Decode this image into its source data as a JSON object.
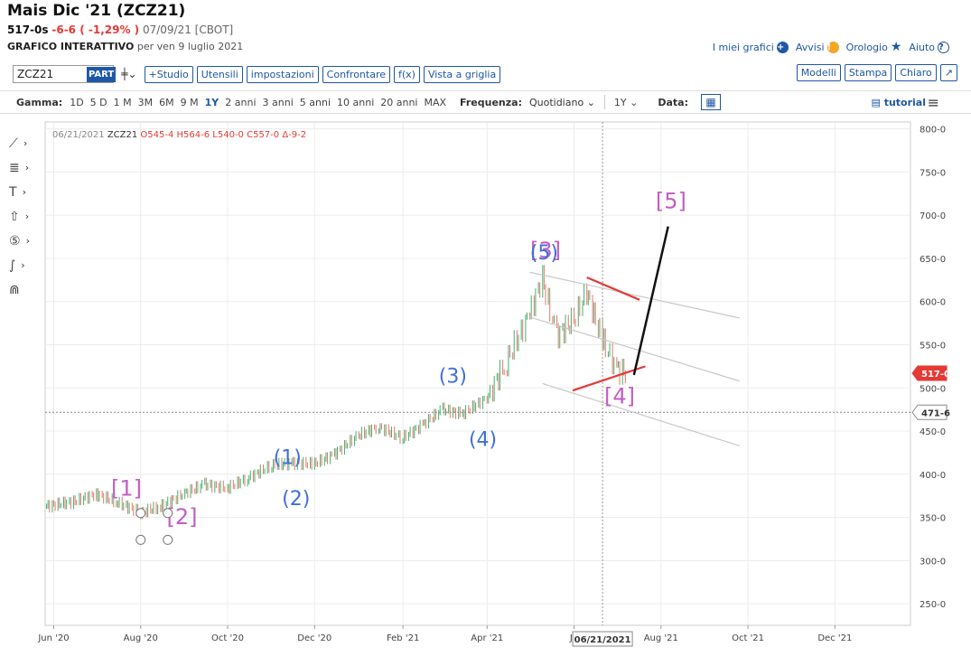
{
  "header": {
    "title": "Mais Dic '21 (ZCZ21)",
    "price": "517-0s",
    "change": "-6-6 ( -1,29% )",
    "date_exchange": "07/09/21 [CBOT]",
    "subtitle_bold": "GRAFICO INTERATTIVO",
    "subtitle_rest": "per ven 9 luglio 2021"
  },
  "toplinks": {
    "my_charts": "I miei grafici",
    "alerts": "Avvisi",
    "watch": "Orologio",
    "help": "Aiuto"
  },
  "toolbar": {
    "symbol_value": "ZCZ21",
    "part_label": "PART",
    "buttons": [
      "+Studio",
      "Utensili",
      "impostazioni",
      "Confrontare",
      "f(x)",
      "Vista a griglia"
    ],
    "right_buttons": [
      "Modelli",
      "Stampa",
      "Chiaro",
      "↗"
    ]
  },
  "rangebar": {
    "range_label": "Gamma:",
    "ranges": [
      "1D",
      "5 D",
      "1 M",
      "3M",
      "6M",
      "9 M",
      "1Y",
      "2 anni",
      "3 anni",
      "5 anni",
      "10 anni",
      "20 anni",
      "MAX"
    ],
    "active_range": "1Y",
    "freq_label": "Frequenza:",
    "freq_value": "Quotidiano",
    "period_value": "1Y",
    "date_label": "Data:",
    "tutorial": "tutorial"
  },
  "sidetools": [
    "line-tool",
    "fib-tool",
    "text-tool",
    "arrow-tool",
    "count-tool",
    "path-tool",
    "magnet-tool"
  ],
  "chart_data": {
    "type": "ohlc",
    "legend": {
      "date": "06/21/2021",
      "symbol": "ZCZ21",
      "open": "O545-4",
      "high": "H564-6",
      "low": "L540-0",
      "close": "C557-0",
      "change": "Δ-9-2"
    },
    "y_ticks": [
      "800-0",
      "750-0",
      "700-0",
      "650-0",
      "600-0",
      "550-0",
      "500-0",
      "450-0",
      "400-0",
      "350-0",
      "300-0",
      "250-0"
    ],
    "ylim": [
      225,
      808
    ],
    "x_ticks": [
      "Jun '20",
      "Aug '20",
      "Oct '20",
      "Dec '20",
      "Feb '21",
      "Apr '21",
      "Ju",
      "Aug '21",
      "Oct '21",
      "Dec '21"
    ],
    "cursor_date_label": "06/21/2021",
    "last_price_label": "517-0",
    "crosshair_price_label": "471-6",
    "series": [
      {
        "x": [
          "2020-05-27",
          "2020-06-15",
          "2020-07-01",
          "2020-07-15",
          "2020-08-01",
          "2020-08-15",
          "2020-09-01",
          "2020-09-15",
          "2020-10-01",
          "2020-10-15",
          "2020-11-01",
          "2020-11-15",
          "2020-12-01",
          "2020-12-15",
          "2021-01-01",
          "2021-01-15",
          "2021-02-01",
          "2021-02-15",
          "2021-03-01",
          "2021-03-15",
          "2021-04-01",
          "2021-04-15",
          "2021-05-01",
          "2021-05-10",
          "2021-05-20",
          "2021-06-01",
          "2021-06-10",
          "2021-06-21",
          "2021-07-01",
          "2021-07-09"
        ],
        "close": [
          363,
          368,
          377,
          368,
          356,
          362,
          378,
          388,
          384,
          395,
          410,
          413,
          412,
          423,
          445,
          455,
          442,
          457,
          475,
          470,
          488,
          530,
          585,
          628,
          560,
          578,
          612,
          557,
          522,
          517
        ]
      }
    ],
    "annotations": {
      "wave_labels_purple": [
        "[1]",
        "[2]",
        "[3]",
        "[4]",
        "[5]"
      ],
      "wave_labels_blue": [
        "(1)",
        "(2)",
        "(3)",
        "(4)",
        "(5)"
      ]
    }
  }
}
